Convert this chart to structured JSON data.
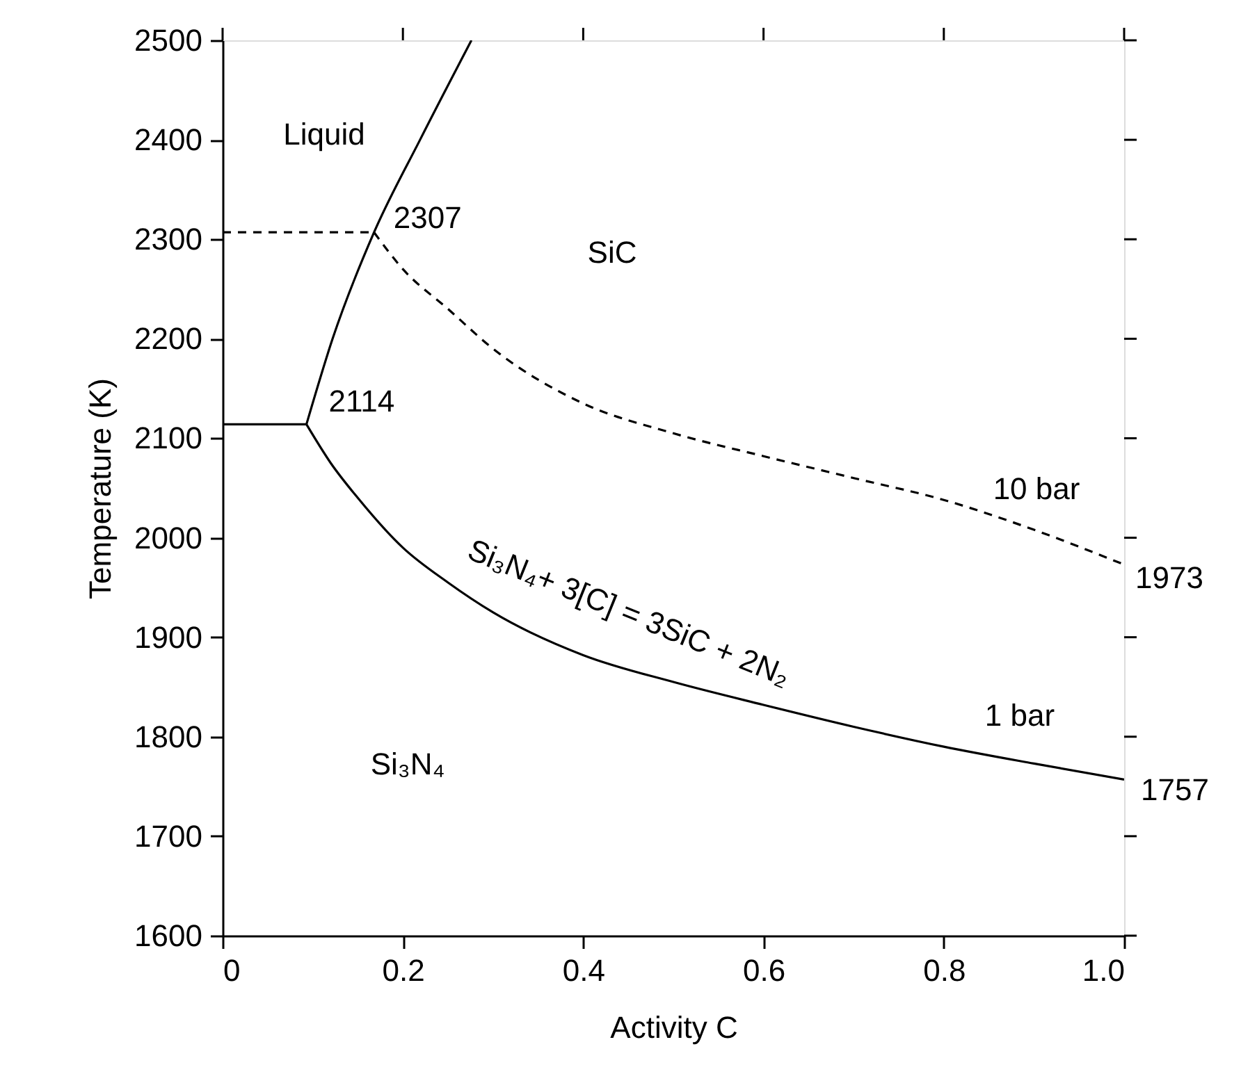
{
  "chart_data": {
    "type": "line",
    "xlabel": "Activity C",
    "ylabel": "Temperature (K)",
    "xlim": [
      0,
      1.0
    ],
    "xticks": [
      0,
      0.2,
      0.4,
      0.6,
      0.8,
      {
        "value": 1.0,
        "label": "1.0"
      }
    ],
    "ylim": [
      1600,
      2500
    ],
    "yticks": [
      1600,
      1700,
      1800,
      1900,
      2000,
      2100,
      2200,
      2300,
      2400,
      2500
    ],
    "grid": false,
    "marker": "none",
    "series": [
      {
        "color": "#000000",
        "line_style": "solid",
        "x": [
          0,
          0.093
        ],
        "values": [
          2114,
          2114
        ]
      },
      {
        "color": "#000000",
        "line_style": "solid",
        "x": [
          0.093,
          0.122,
          0.168,
          0.219,
          0.276
        ],
        "values": [
          2114,
          2200,
          2307,
          2400,
          2500
        ]
      },
      {
        "color": "#000000",
        "line_style": "solid",
        "x": [
          0.093,
          0.12,
          0.15,
          0.2,
          0.25,
          0.3,
          0.4,
          0.5,
          0.6,
          0.7,
          0.8,
          0.9,
          1.0
        ],
        "values": [
          2114,
          2075,
          2040,
          1990,
          1955,
          1925,
          1882,
          1855,
          1832,
          1810,
          1790,
          1773,
          1757
        ]
      },
      {
        "color": "#000000",
        "line_style": "dashed",
        "x": [
          0,
          0.168
        ],
        "values": [
          2307,
          2307
        ]
      },
      {
        "color": "#000000",
        "line_style": "dashed",
        "x": [
          0.168,
          0.2,
          0.25,
          0.3,
          0.4,
          0.5,
          0.6,
          0.7,
          0.8,
          0.9,
          1.0
        ],
        "values": [
          2307,
          2270,
          2230,
          2190,
          2135,
          2105,
          2082,
          2060,
          2038,
          2008,
          1973
        ]
      }
    ],
    "annotations": [
      {
        "text": "2307",
        "x": 0.168,
        "y": 2307
      },
      {
        "text": "2114",
        "x": 0.093,
        "y": 2114
      },
      {
        "text": "1973",
        "x": 1.0,
        "y": 1973
      },
      {
        "text": "1757",
        "x": 1.0,
        "y": 1757
      },
      "Liquid",
      "SiC",
      "Si₃N₄",
      "10 bar",
      "1 bar",
      "Si₃N₄+ 3[C] = 3SiC + 2N₂"
    ]
  }
}
